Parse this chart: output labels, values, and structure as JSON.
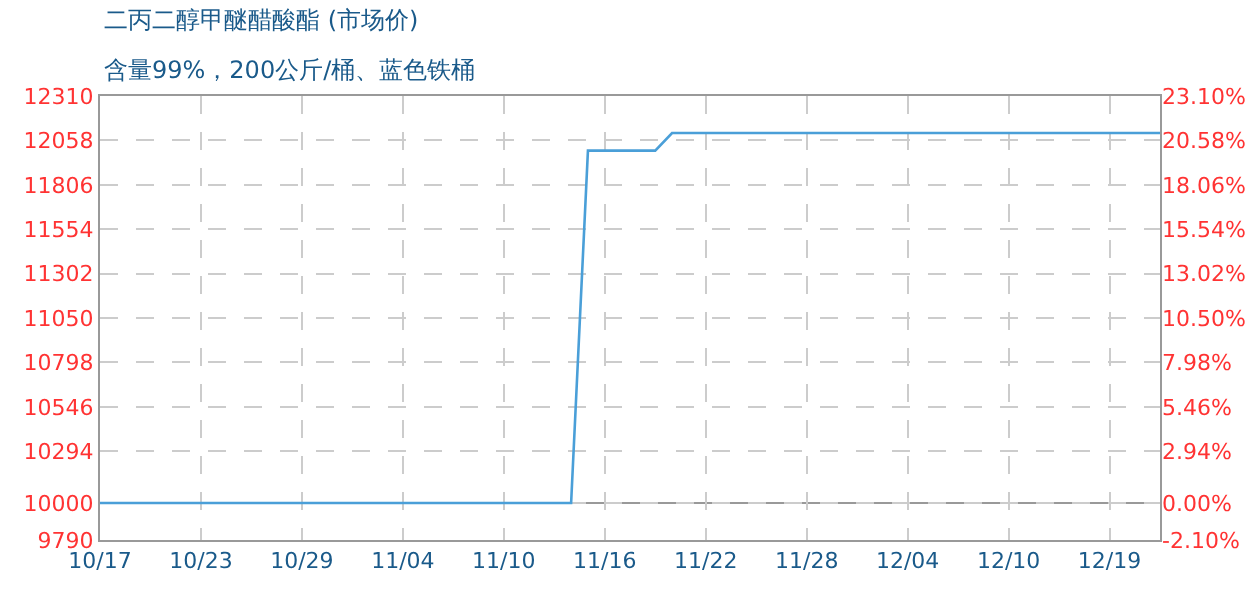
{
  "chart_data": {
    "type": "line",
    "title": "二丙二醇甲醚醋酸酯 (市场价)",
    "subtitle": "含量99%，200公斤/桶、蓝色铁桶",
    "categories": [
      "10/17",
      null,
      null,
      null,
      null,
      null,
      "10/23",
      null,
      null,
      null,
      null,
      null,
      "10/29",
      null,
      null,
      null,
      null,
      null,
      "11/04",
      null,
      null,
      null,
      null,
      null,
      "11/10",
      null,
      null,
      null,
      null,
      null,
      "11/16",
      null,
      null,
      null,
      null,
      null,
      "11/22",
      null,
      null,
      null,
      null,
      null,
      "11/28",
      null,
      null,
      null,
      null,
      null,
      "12/04",
      null,
      null,
      null,
      null,
      null,
      "12/10",
      null,
      null,
      null,
      null,
      null,
      "12/19",
      null,
      null,
      null
    ],
    "series": [
      {
        "color": "#4a9fd8",
        "values": [
          10000,
          10000,
          10000,
          10000,
          10000,
          10000,
          10000,
          10000,
          10000,
          10000,
          10000,
          10000,
          10000,
          10000,
          10000,
          10000,
          10000,
          10000,
          10000,
          10000,
          10000,
          10000,
          10000,
          10000,
          10000,
          10000,
          10000,
          10000,
          10000,
          12000,
          12000,
          12000,
          12000,
          12000,
          12100,
          12100,
          12100,
          12100,
          12100,
          12100,
          12100,
          12100,
          12100,
          12100,
          12100,
          12100,
          12100,
          12100,
          12100,
          12100,
          12100,
          12100,
          12100,
          12100,
          12100,
          12100,
          12100,
          12100,
          12100,
          12100,
          12100,
          12100,
          12100,
          12100
        ]
      }
    ],
    "ylim": [
      9790,
      12310
    ],
    "yticks": [
      9790,
      10000,
      10294,
      10546,
      10798,
      11050,
      11302,
      11554,
      11806,
      12058,
      12310
    ],
    "y2lim": [
      -2.1,
      23.1
    ],
    "y2ticks": [
      {
        "value": -2.1,
        "label": "-2.10%"
      },
      {
        "value": 0,
        "label": "0.00%"
      },
      {
        "value": 2.94,
        "label": "2.94%"
      },
      {
        "value": 5.46,
        "label": "5.46%"
      },
      {
        "value": 7.98,
        "label": "7.98%"
      },
      {
        "value": 10.5,
        "label": "10.50%"
      },
      {
        "value": 13.02,
        "label": "13.02%"
      },
      {
        "value": 15.54,
        "label": "15.54%"
      },
      {
        "value": 18.06,
        "label": "18.06%"
      },
      {
        "value": 20.58,
        "label": "20.58%"
      },
      {
        "value": 23.1,
        "label": "23.10%"
      }
    ],
    "ref_lines": [
      {
        "axis": "y",
        "value": 10000,
        "color": "#999999",
        "line_style": "solid"
      }
    ],
    "grid": true,
    "marker": "none",
    "line_style": "solid"
  }
}
